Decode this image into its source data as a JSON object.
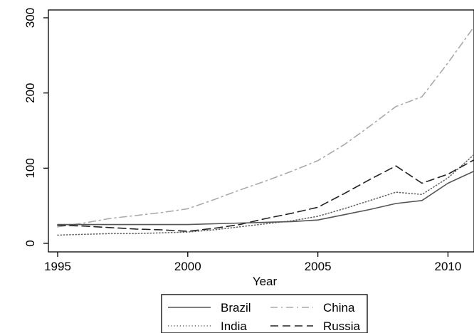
{
  "chart_data": {
    "type": "line",
    "title": "",
    "xlabel": "Year",
    "ylabel": "",
    "xlim": [
      1995,
      2011
    ],
    "ylim": [
      0,
      300
    ],
    "x_ticks": [
      1995,
      2000,
      2005,
      2010
    ],
    "y_ticks": [
      0,
      100,
      200,
      300
    ],
    "grid": false,
    "legend_position": "bottom",
    "x": [
      1995,
      1996,
      1997,
      1998,
      1999,
      2000,
      2001,
      2002,
      2003,
      2004,
      2005,
      2006,
      2007,
      2008,
      2009,
      2010,
      2011
    ],
    "series": [
      {
        "name": "Brazil",
        "style": "solid",
        "color": "#555555",
        "values": [
          25,
          25,
          25,
          25,
          25,
          25,
          26,
          27,
          28,
          29,
          31,
          38,
          45,
          53,
          57,
          80,
          96
        ]
      },
      {
        "name": "China",
        "style": "dash-dot",
        "color": "#aaaaaa",
        "values": [
          22,
          27,
          33,
          37,
          41,
          46,
          58,
          71,
          83,
          96,
          110,
          131,
          156,
          182,
          195,
          240,
          288
        ]
      },
      {
        "name": "India",
        "style": "dotted",
        "color": "#666666",
        "values": [
          11,
          12,
          13,
          13,
          14,
          15,
          18,
          22,
          26,
          30,
          36,
          46,
          57,
          68,
          65,
          87,
          118
        ]
      },
      {
        "name": "Russia",
        "style": "dash",
        "color": "#222222",
        "values": [
          24,
          23,
          21,
          19,
          18,
          16,
          20,
          25,
          33,
          40,
          48,
          66,
          85,
          103,
          80,
          92,
          111
        ]
      }
    ]
  }
}
